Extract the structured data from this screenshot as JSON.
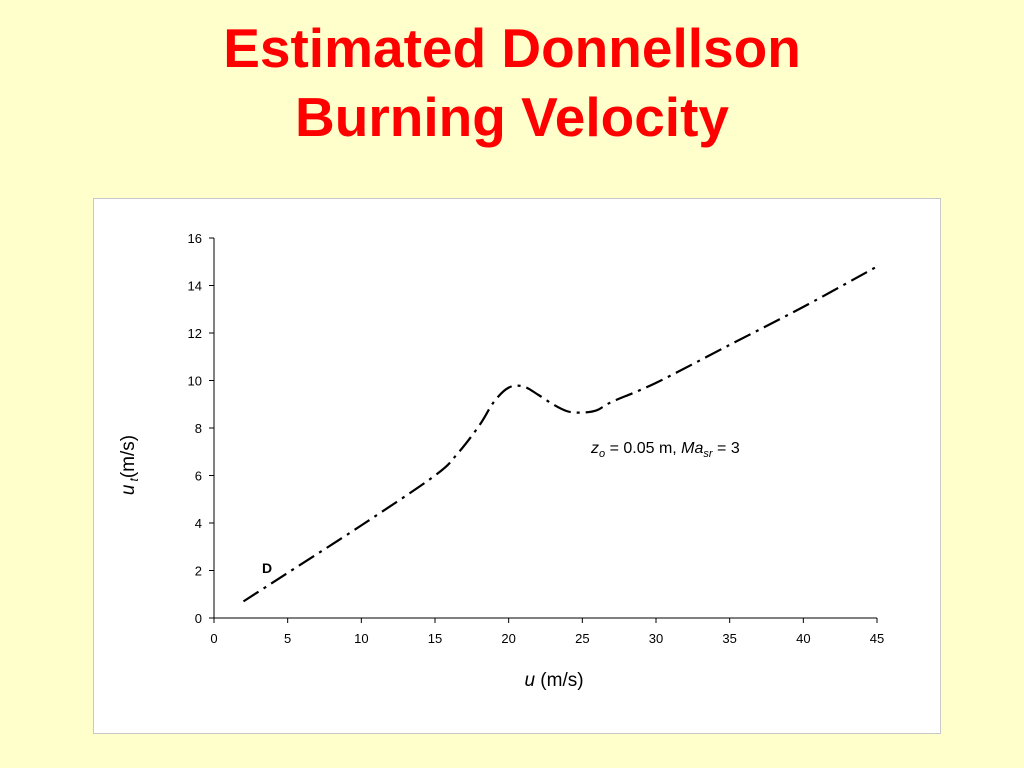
{
  "slide": {
    "title_line1": "Estimated Donnellson",
    "title_line2": "Burning Velocity",
    "title_color": "#ff0000",
    "background": "#ffffcc"
  },
  "chart_data": {
    "type": "line",
    "xlim": [
      0,
      45
    ],
    "ylim": [
      0,
      16
    ],
    "xticks": [
      0,
      5,
      10,
      15,
      20,
      25,
      30,
      35,
      40,
      45
    ],
    "yticks": [
      0,
      2,
      4,
      6,
      8,
      10,
      12,
      14,
      16
    ],
    "xlabel": {
      "var": "u",
      "unit": " (m/s)"
    },
    "ylabel": {
      "var": "u",
      "sub": "t",
      "unit": "(m/s)"
    },
    "annotation": {
      "z": "z",
      "z_sub": "o",
      "mid": " = 0.05 m, ",
      "ma": "Ma",
      "ma_sub": "sr",
      "end": " = 3"
    },
    "marker_label": "D",
    "grid": false,
    "line_style": "dash-dot",
    "series": [
      {
        "x": [
          2,
          5,
          10,
          15,
          16.5,
          18,
          19,
          20,
          21,
          22,
          23,
          24,
          25,
          26,
          27,
          30,
          35,
          40,
          45
        ],
        "y": [
          0.7,
          1.9,
          3.9,
          6.0,
          6.9,
          8.1,
          9.1,
          9.7,
          9.75,
          9.4,
          9.0,
          8.7,
          8.65,
          8.75,
          9.1,
          9.9,
          11.5,
          13.1,
          14.8
        ]
      }
    ]
  }
}
